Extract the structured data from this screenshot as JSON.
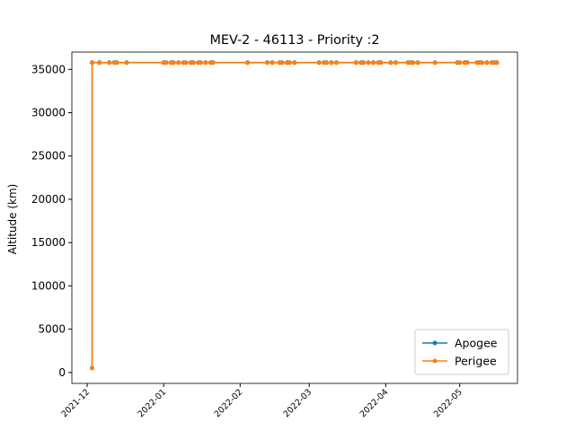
{
  "chart_data": {
    "type": "line",
    "title": "MEV-2 - 46113 - Priority :2",
    "ylabel": "Altitude (km)",
    "x": [
      18964,
      18964,
      18967,
      18971,
      18973,
      18974,
      18978,
      18993,
      18994,
      18996,
      18997,
      18999,
      19001,
      19002,
      19004,
      19005,
      19007,
      19008,
      19010,
      19012,
      19013,
      19027,
      19035,
      19037,
      19040,
      19041,
      19043,
      19044,
      19046,
      19056,
      19058,
      19059,
      19061,
      19063,
      19071,
      19073,
      19074,
      19076,
      19078,
      19080,
      19081,
      19085,
      19087,
      19092,
      19093,
      19094,
      19096,
      19103,
      19112,
      19113,
      19115,
      19116,
      19120,
      19121,
      19122,
      19124,
      19126,
      19127,
      19128
    ],
    "series": [
      {
        "name": "Apogee",
        "color": "#1f77b4",
        "values": [
          500,
          35790,
          35790,
          35790,
          35790,
          35790,
          35790,
          35790,
          35790,
          35790,
          35790,
          35790,
          35790,
          35790,
          35790,
          35790,
          35790,
          35790,
          35790,
          35790,
          35790,
          35790,
          35790,
          35790,
          35790,
          35790,
          35790,
          35790,
          35790,
          35790,
          35790,
          35790,
          35790,
          35790,
          35790,
          35790,
          35790,
          35790,
          35790,
          35790,
          35790,
          35790,
          35790,
          35790,
          35790,
          35790,
          35790,
          35790,
          35790,
          35790,
          35790,
          35790,
          35790,
          35790,
          35790,
          35790,
          35790,
          35790,
          35790
        ]
      },
      {
        "name": "Perigee",
        "color": "#ff7f0e",
        "values": [
          500,
          35770,
          35770,
          35770,
          35770,
          35770,
          35770,
          35770,
          35770,
          35770,
          35770,
          35770,
          35770,
          35770,
          35770,
          35770,
          35770,
          35770,
          35770,
          35770,
          35770,
          35770,
          35770,
          35770,
          35770,
          35770,
          35770,
          35770,
          35770,
          35770,
          35770,
          35770,
          35770,
          35770,
          35770,
          35770,
          35770,
          35770,
          35770,
          35770,
          35770,
          35770,
          35770,
          35770,
          35770,
          35770,
          35770,
          35770,
          35770,
          35770,
          35770,
          35770,
          35770,
          35770,
          35770,
          35770,
          35770,
          35770,
          35770
        ]
      }
    ],
    "xlim": [
      18955.8,
      19136.4
    ],
    "xticks": [
      {
        "value": 18962,
        "label": "2021-12"
      },
      {
        "value": 18993,
        "label": "2022-01"
      },
      {
        "value": 19024,
        "label": "2022-02"
      },
      {
        "value": 19052,
        "label": "2022-03"
      },
      {
        "value": 19083,
        "label": "2022-04"
      },
      {
        "value": 19113,
        "label": "2022-05"
      }
    ],
    "ylim": [
      -1260,
      37000
    ],
    "yticks": [
      0,
      5000,
      10000,
      15000,
      20000,
      25000,
      30000,
      35000
    ],
    "grid": false,
    "legend": "lower right"
  }
}
